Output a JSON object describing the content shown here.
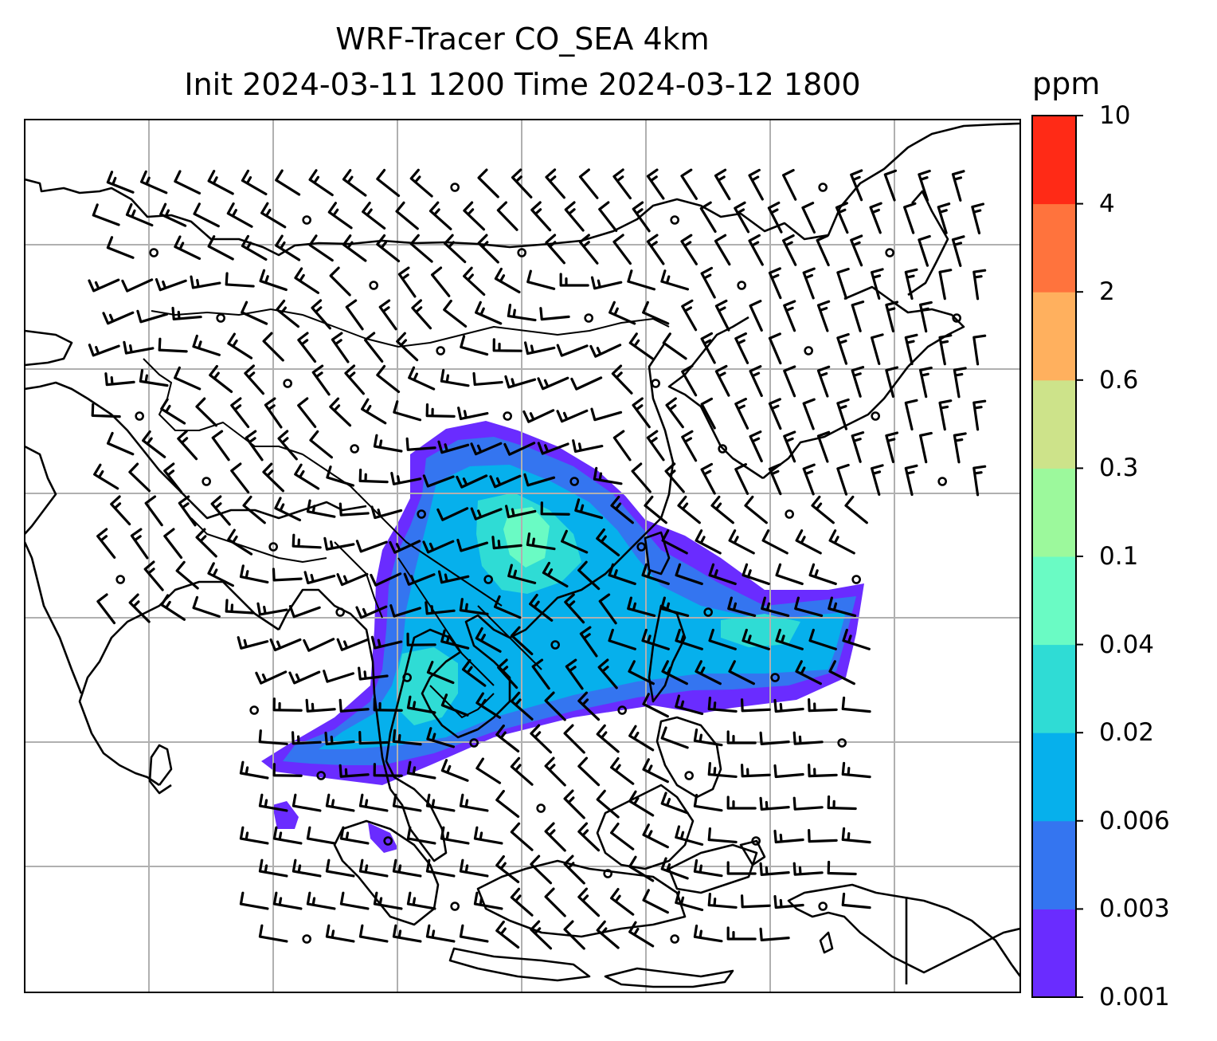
{
  "title": {
    "line1": "WRF-Tracer CO_SEA 4km",
    "line2": "Init 2024-03-11 1200 Time 2024-03-12 1800"
  },
  "colorbar": {
    "unit": "ppm",
    "levels": [
      "0.001",
      "0.003",
      "0.006",
      "0.02",
      "0.04",
      "0.1",
      "0.3",
      "0.6",
      "2",
      "4",
      "10"
    ],
    "colors": [
      "#6a2cff",
      "#3475f0",
      "#06b0ec",
      "#2fdcd5",
      "#6afbc4",
      "#9cf99c",
      "#cde38a",
      "#ffb05e",
      "#ff733d",
      "#ff2a16"
    ]
  },
  "map": {
    "gridlines": true,
    "features": [
      "coastlines",
      "country borders",
      "wind barbs",
      "CO tracer concentration"
    ]
  }
}
